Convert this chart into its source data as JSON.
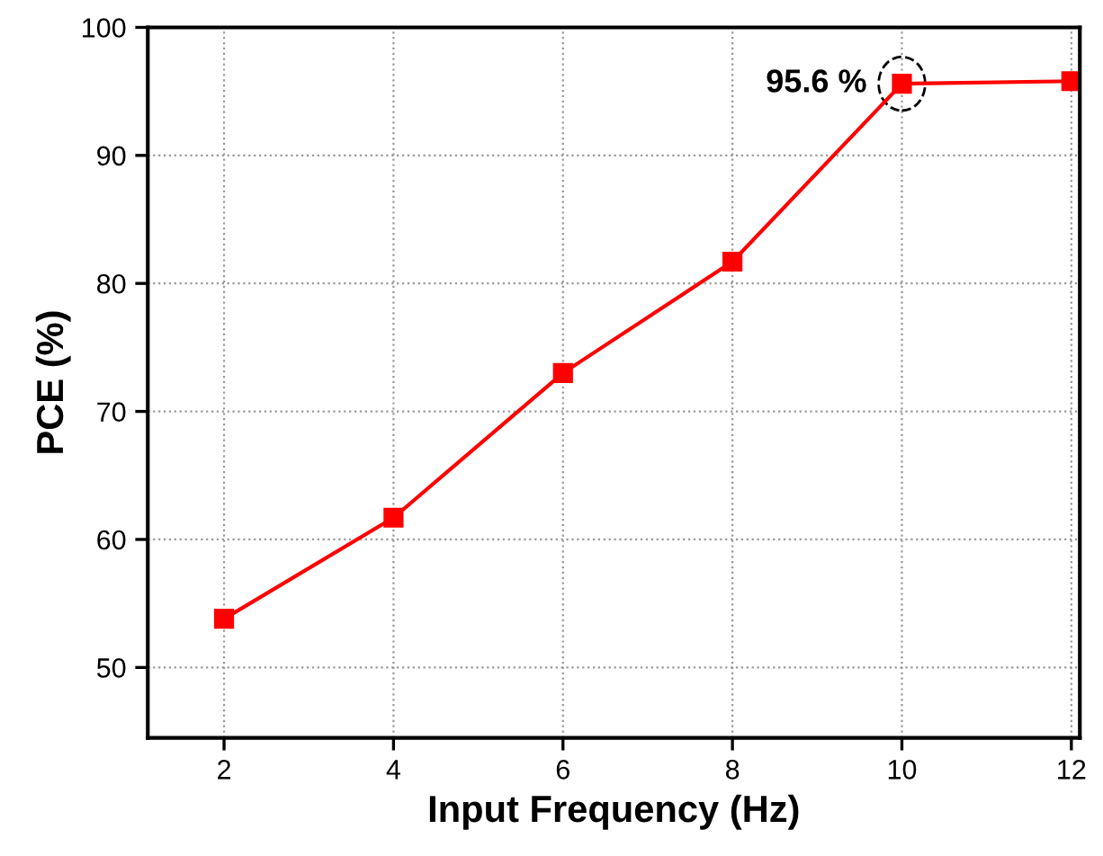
{
  "chart_data": {
    "type": "line",
    "xlabel": "Input Frequency (Hz)",
    "ylabel": "PCE (%)",
    "x": [
      2,
      4,
      6,
      8,
      10,
      12
    ],
    "series": [
      {
        "color": "#ff0000",
        "values": [
          53.8,
          61.7,
          73.0,
          81.7,
          95.6,
          95.8
        ]
      }
    ],
    "xlim": [
      1.1,
      12.1
    ],
    "ylim": [
      44.5,
      100
    ],
    "xticks": [
      2,
      4,
      6,
      8,
      10,
      12
    ],
    "yticks": [
      50,
      60,
      70,
      80,
      90,
      100
    ],
    "grid": true,
    "marker": "square",
    "line_style": "solid",
    "annotations": [
      {
        "text": "95.6 %",
        "x": 10,
        "y": 95.6
      }
    ]
  }
}
